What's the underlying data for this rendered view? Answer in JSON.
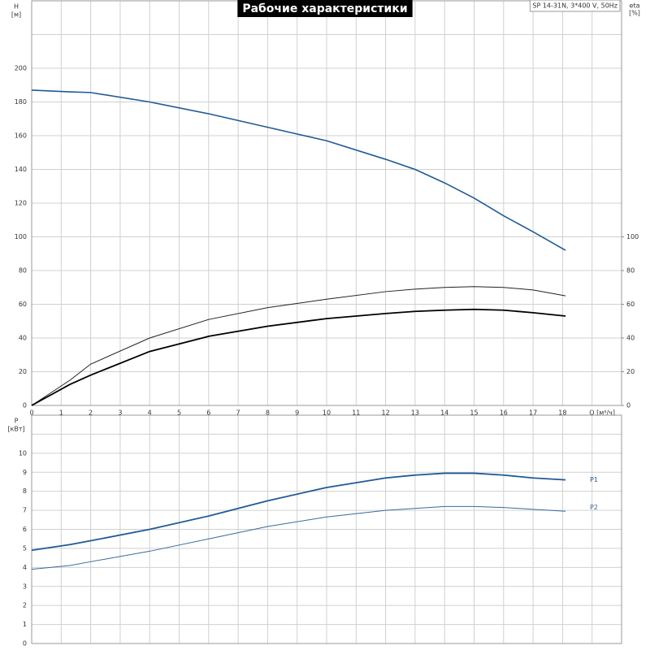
{
  "chart_data": [
    {
      "type": "line",
      "title": "Рабочие характеристики",
      "subtitle": "SP 14-31N, 3*400 V, 50Hz",
      "ylabel": "H",
      "yunit": "[м]",
      "y2label": "eta",
      "y2unit": "[%]",
      "xlabel": "Q [м³/ч]",
      "x": [
        0,
        1.3,
        2,
        4,
        6,
        8,
        10,
        12,
        13,
        14,
        15,
        16,
        17,
        18.1
      ],
      "xlim": [
        0,
        20
      ],
      "xticks": [
        0,
        1,
        2,
        3,
        4,
        5,
        6,
        7,
        8,
        9,
        10,
        11,
        12,
        13,
        14,
        15,
        16,
        17,
        18
      ],
      "xticklabels": true,
      "ylim": [
        0,
        240
      ],
      "yticks": [
        0,
        20,
        40,
        60,
        80,
        100,
        120,
        140,
        160,
        180,
        200
      ],
      "y2lim": [
        0,
        240
      ],
      "y2ticks": [
        0,
        20,
        40,
        60,
        80,
        100
      ],
      "grid": true,
      "series": [
        {
          "color": "#1f5a96",
          "linewidth": 1.6,
          "values": [
            187,
            186,
            185.6,
            180,
            173,
            165,
            157,
            146,
            140,
            132,
            123,
            112.5,
            103,
            92
          ]
        },
        {
          "axis": "y2",
          "color": "#222222",
          "linewidth": 1,
          "values": [
            0,
            15,
            24.5,
            40,
            51,
            58,
            63,
            67.5,
            69,
            70,
            70.5,
            70,
            68.5,
            65
          ]
        },
        {
          "axis": "y2",
          "color": "#000000",
          "linewidth": 1.8,
          "values": [
            0,
            12.5,
            18,
            32,
            41,
            47,
            51.5,
            54.5,
            55.8,
            56.5,
            57,
            56.5,
            55,
            53
          ]
        }
      ]
    },
    {
      "type": "line",
      "ylabel": "P",
      "yunit": "[кВт]",
      "x": [
        0,
        1.3,
        2,
        4,
        6,
        8,
        10,
        12,
        13,
        14,
        15,
        16,
        17,
        18.1
      ],
      "xlim": [
        0,
        20
      ],
      "xticks": [
        0,
        1,
        2,
        3,
        4,
        5,
        6,
        7,
        8,
        9,
        10,
        11,
        12,
        13,
        14,
        15,
        16,
        17,
        18
      ],
      "xticklabels": false,
      "ylim": [
        0,
        12
      ],
      "yticks": [
        0,
        1,
        2,
        3,
        4,
        5,
        6,
        7,
        8,
        9,
        10
      ],
      "grid": true,
      "series": [
        {
          "name": "P1",
          "color": "#1f5a96",
          "linewidth": 1.8,
          "values": [
            4.9,
            5.2,
            5.4,
            6.0,
            6.7,
            7.5,
            8.2,
            8.7,
            8.85,
            8.95,
            8.95,
            8.85,
            8.7,
            8.6
          ]
        },
        {
          "name": "P2",
          "color": "#3a6a9a",
          "linewidth": 1,
          "values": [
            3.9,
            4.1,
            4.3,
            4.85,
            5.5,
            6.15,
            6.65,
            7.0,
            7.1,
            7.2,
            7.2,
            7.15,
            7.05,
            6.95
          ]
        }
      ]
    }
  ]
}
